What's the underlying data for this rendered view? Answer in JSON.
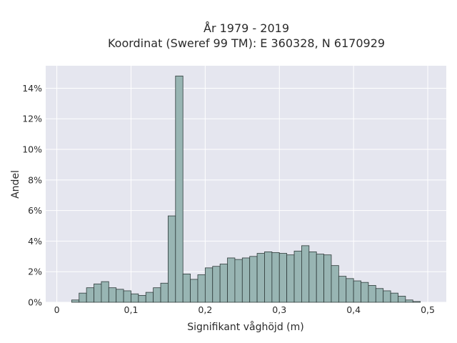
{
  "chart_data": {
    "type": "bar",
    "title": [
      "År 1979 - 2019",
      "Koordinat (Sweref 99 TM): E 360328, N 6170929"
    ],
    "xlabel": "Signifikant våghöjd (m)",
    "ylabel": "Andel",
    "xlim": [
      -0.015,
      0.525
    ],
    "ylim": [
      0,
      0.1547
    ],
    "xticks": [
      0,
      0.1,
      0.2,
      0.3,
      0.4,
      0.5
    ],
    "xtick_labels": [
      "0",
      "0,1",
      "0,2",
      "0,3",
      "0,4",
      "0,5"
    ],
    "yticks": [
      0,
      0.02,
      0.04,
      0.06,
      0.08,
      0.1,
      0.12,
      0.14
    ],
    "ytick_labels": [
      "0%",
      "2%",
      "4%",
      "6%",
      "8%",
      "10%",
      "12%",
      "14%"
    ],
    "bin_width": 0.01,
    "bin_starts": [
      0.02,
      0.03,
      0.04,
      0.05,
      0.06,
      0.07,
      0.08,
      0.09,
      0.1,
      0.11,
      0.12,
      0.13,
      0.14,
      0.15,
      0.16,
      0.17,
      0.18,
      0.19,
      0.2,
      0.21,
      0.22,
      0.23,
      0.24,
      0.25,
      0.26,
      0.27,
      0.28,
      0.29,
      0.3,
      0.31,
      0.32,
      0.33,
      0.34,
      0.35,
      0.36,
      0.37,
      0.38,
      0.39,
      0.4,
      0.41,
      0.42,
      0.43,
      0.44,
      0.45,
      0.46,
      0.47,
      0.48
    ],
    "values": [
      0.0015,
      0.006,
      0.0095,
      0.012,
      0.0135,
      0.0095,
      0.0085,
      0.0075,
      0.0055,
      0.0045,
      0.0065,
      0.0095,
      0.0125,
      0.0565,
      0.148,
      0.0185,
      0.015,
      0.018,
      0.0225,
      0.0235,
      0.025,
      0.029,
      0.028,
      0.029,
      0.03,
      0.032,
      0.033,
      0.0325,
      0.032,
      0.031,
      0.0335,
      0.037,
      0.033,
      0.0315,
      0.031,
      0.024,
      0.017,
      0.0155,
      0.014,
      0.013,
      0.011,
      0.009,
      0.0075,
      0.006,
      0.004,
      0.0015,
      0.0005
    ],
    "colors": {
      "bar_fill": "#98b5b3",
      "bar_edge": "#2f3b3a",
      "plot_background": "#e5e6ef",
      "grid": "#ffffff"
    },
    "grid": true,
    "legend": "none"
  }
}
